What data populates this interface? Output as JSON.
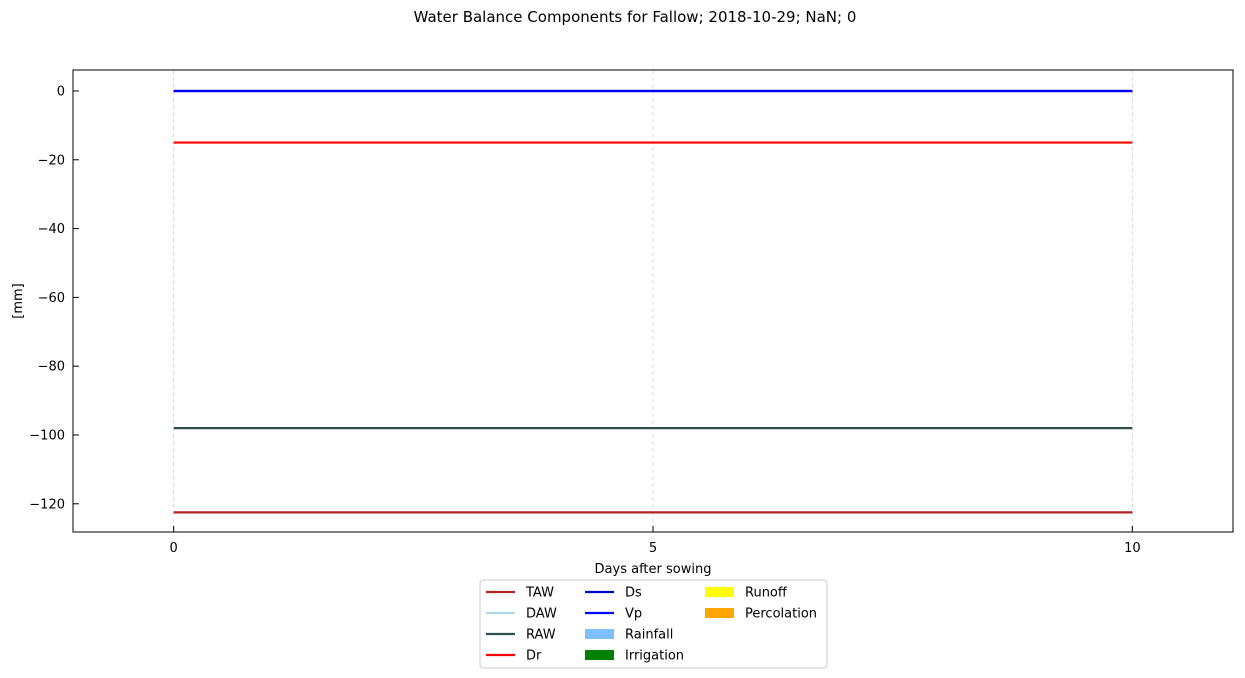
{
  "chart_data": {
    "type": "line",
    "title": "Water Balance Components for Fallow; 2018-10-29; NaN; 0",
    "xlabel": "Days after sowing",
    "ylabel": "[mm]",
    "xlim": [
      -1.05,
      11.05
    ],
    "ylim": [
      -128.2,
      6.1
    ],
    "xticks": [
      0,
      5,
      10
    ],
    "yticks": [
      0,
      -20,
      -40,
      -60,
      -80,
      -100,
      -120
    ],
    "grid": "x-dashed",
    "legend_position": "bottom-center",
    "series": [
      {
        "name": "TAW",
        "kind": "line",
        "color": "#b22222",
        "x": [
          0,
          10
        ],
        "y": [
          -122.5,
          -122.5
        ]
      },
      {
        "name": "DAW",
        "kind": "line",
        "color": "#add8e6",
        "x": [],
        "y": []
      },
      {
        "name": "RAW",
        "kind": "line",
        "color": "#2f4f4f",
        "x": [
          0,
          10
        ],
        "y": [
          -98,
          -98
        ]
      },
      {
        "name": "Dr",
        "kind": "line",
        "color": "#ff0000",
        "x": [
          0,
          10
        ],
        "y": [
          -15,
          -15
        ]
      },
      {
        "name": "Ds",
        "kind": "line",
        "color": "#0000cd",
        "x": [
          0,
          10
        ],
        "y": [
          0,
          0
        ]
      },
      {
        "name": "Vp",
        "kind": "line",
        "color": "#0000ff",
        "x": [
          0,
          10
        ],
        "y": [
          0,
          0
        ]
      },
      {
        "name": "Rainfall",
        "kind": "bar",
        "color": "#7fbfff",
        "x": [],
        "y": []
      },
      {
        "name": "Irrigation",
        "kind": "bar",
        "color": "#008000",
        "x": [],
        "y": []
      },
      {
        "name": "Runoff",
        "kind": "bar",
        "color": "#ffff00",
        "x": [],
        "y": []
      },
      {
        "name": "Percolation",
        "kind": "bar",
        "color": "#ffa500",
        "x": [],
        "y": []
      }
    ]
  }
}
